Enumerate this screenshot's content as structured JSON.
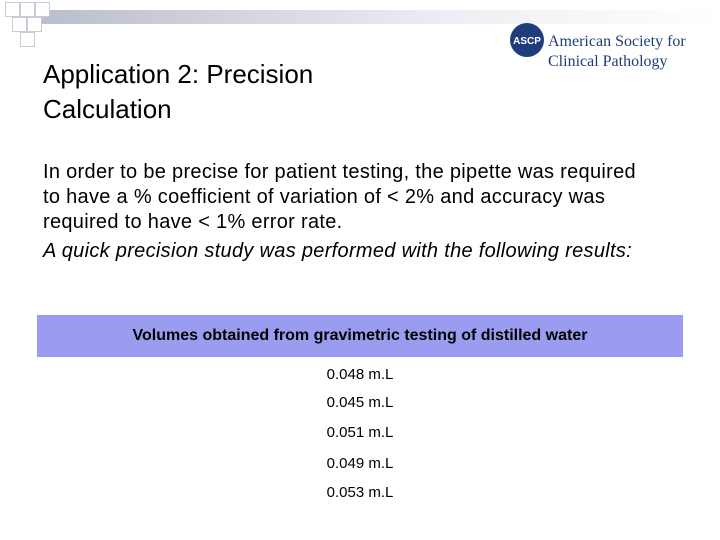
{
  "logo": {
    "badge": "ASCP",
    "line1": "American Society for",
    "line2": "Clinical Pathology"
  },
  "title": "Application 2: Precision Calculation",
  "body": [
    "In order to be precise for patient testing, the pipette was required to have a % coefficient of variation of < 2% and accuracy was required to have < 1% error rate.",
    "A quick precision study was performed with the following results:"
  ],
  "table": {
    "header": "Volumes obtained from gravimetric testing of distilled water",
    "rows": [
      "0.048 m.L",
      "0.045 m.L",
      "0.051 m.L",
      "0.049 m.L",
      "0.053 m.L"
    ]
  }
}
